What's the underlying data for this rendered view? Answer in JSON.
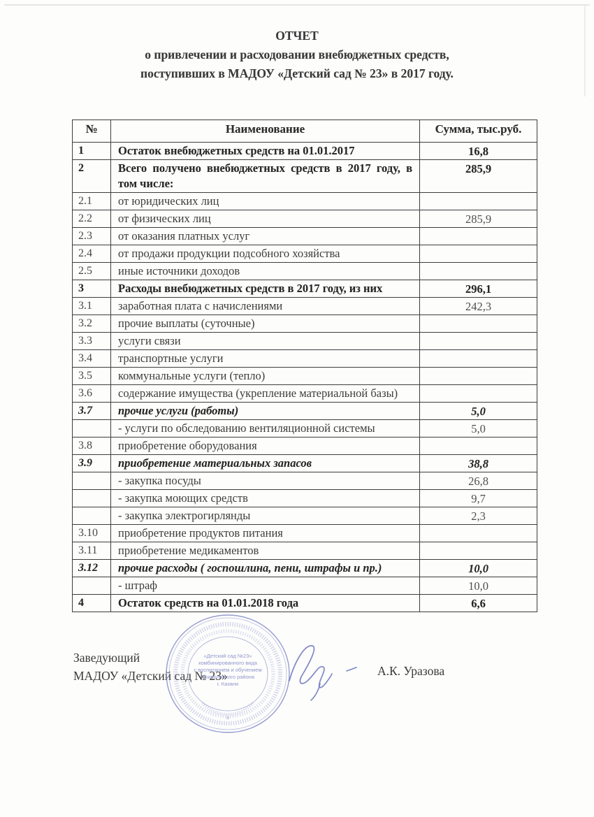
{
  "title": {
    "line1": "ОТЧЕТ",
    "line2": "о привлечении и расходовании внебюджетных средств,",
    "line3": "поступивших в МАДОУ «Детский сад № 23» в 2017 году."
  },
  "table": {
    "headers": [
      "№",
      "Наименование",
      "Сумма, тыс.руб."
    ],
    "rows": [
      {
        "num": "1",
        "name": "Остаток внебюджетных средств на 01.01.2017",
        "value": "16,8",
        "style": "bold"
      },
      {
        "num": "2",
        "name": "Всего получено внебюджетных средств в 2017 году, в том числе:",
        "value": "285,9",
        "style": "bold justify"
      },
      {
        "num": "2.1",
        "name": "от юридических лиц",
        "value": "",
        "style": "normal"
      },
      {
        "num": "2.2",
        "name": "от физических лиц",
        "value": "285,9",
        "style": "normal"
      },
      {
        "num": "2.3",
        "name": "от оказания платных услуг",
        "value": "",
        "style": "normal"
      },
      {
        "num": "2.4",
        "name": "от продажи продукции подсобного хозяйства",
        "value": "",
        "style": "normal"
      },
      {
        "num": "2.5",
        "name": "иные источники доходов",
        "value": "",
        "style": "normal"
      },
      {
        "num": "3",
        "name": "Расходы внебюджетных средств в 2017 году, из них",
        "value": "296,1",
        "style": "bold"
      },
      {
        "num": "3.1",
        "name": "заработная плата с начислениями",
        "value": "242,3",
        "style": "normal"
      },
      {
        "num": "3.2",
        "name": "прочие выплаты (суточные)",
        "value": "",
        "style": "normal"
      },
      {
        "num": "3.3",
        "name": "услуги связи",
        "value": "",
        "style": "normal"
      },
      {
        "num": "3.4",
        "name": "транспортные услуги",
        "value": "",
        "style": "normal"
      },
      {
        "num": "3.5",
        "name": "коммунальные услуги (тепло)",
        "value": "",
        "style": "normal"
      },
      {
        "num": "3.6",
        "name": "содержание имущества (укрепление материальной базы)",
        "value": "",
        "style": "normal"
      },
      {
        "num": "3.7",
        "name": "прочие услуги (работы)",
        "value": "5,0",
        "style": "bold italic"
      },
      {
        "num": "",
        "name": "- услуги по обследованию вентиляционной системы",
        "value": "5,0",
        "style": "normal"
      },
      {
        "num": "3.8",
        "name": "приобретение оборудования",
        "value": "",
        "style": "normal"
      },
      {
        "num": "3.9",
        "name": "приобретение материальных запасов",
        "value": "38,8",
        "style": "bold italic"
      },
      {
        "num": "",
        "name": "- закупка посуды",
        "value": "26,8",
        "style": "normal"
      },
      {
        "num": "",
        "name": "- закупка моющих средств",
        "value": "9,7",
        "style": "normal"
      },
      {
        "num": "",
        "name": "- закупка электрогирлянды",
        "value": "2,3",
        "style": "normal"
      },
      {
        "num": "3.10",
        "name": "приобретение продуктов питания",
        "value": "",
        "style": "normal"
      },
      {
        "num": "3.11",
        "name": "приобретение медикаментов",
        "value": "",
        "style": "normal"
      },
      {
        "num": "3.12",
        "name": "прочие расходы ( госпошлина, пени, штрафы и пр.)",
        "value": "10,0",
        "style": "bold italic"
      },
      {
        "num": "",
        "name": "- штраф",
        "value": "10,0",
        "style": "normal"
      },
      {
        "num": "4",
        "name": "Остаток средств на 01.01.2018 года",
        "value": "6,6",
        "style": "bold"
      }
    ]
  },
  "signature": {
    "role_line1": "Заведующий",
    "role_line2": "МАДОУ «Детский сад № 23»",
    "signer_name": "А.К. Уразова"
  },
  "stamp": {
    "color": "#7d85c4",
    "center_lines": [
      "«Детский сад №23»",
      "комбинированного вида",
      "с воспитанием и обучением",
      "Приволжского района",
      "г. Казани"
    ]
  }
}
